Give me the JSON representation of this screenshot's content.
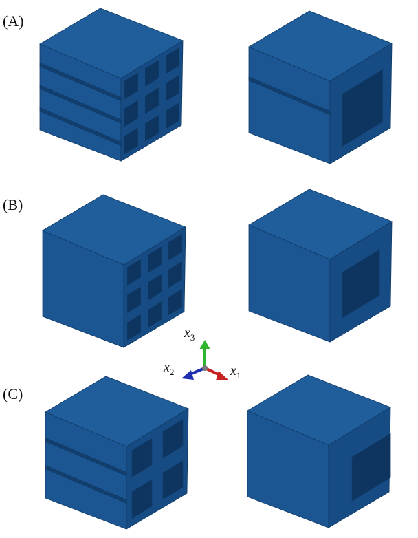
{
  "panels": [
    {
      "label": "(A)"
    },
    {
      "label": "(B)"
    },
    {
      "label": "(C)"
    }
  ],
  "axes": [
    {
      "symbol": "x",
      "index": "3"
    },
    {
      "symbol": "x",
      "index": "2"
    },
    {
      "symbol": "x",
      "index": "1"
    }
  ]
}
